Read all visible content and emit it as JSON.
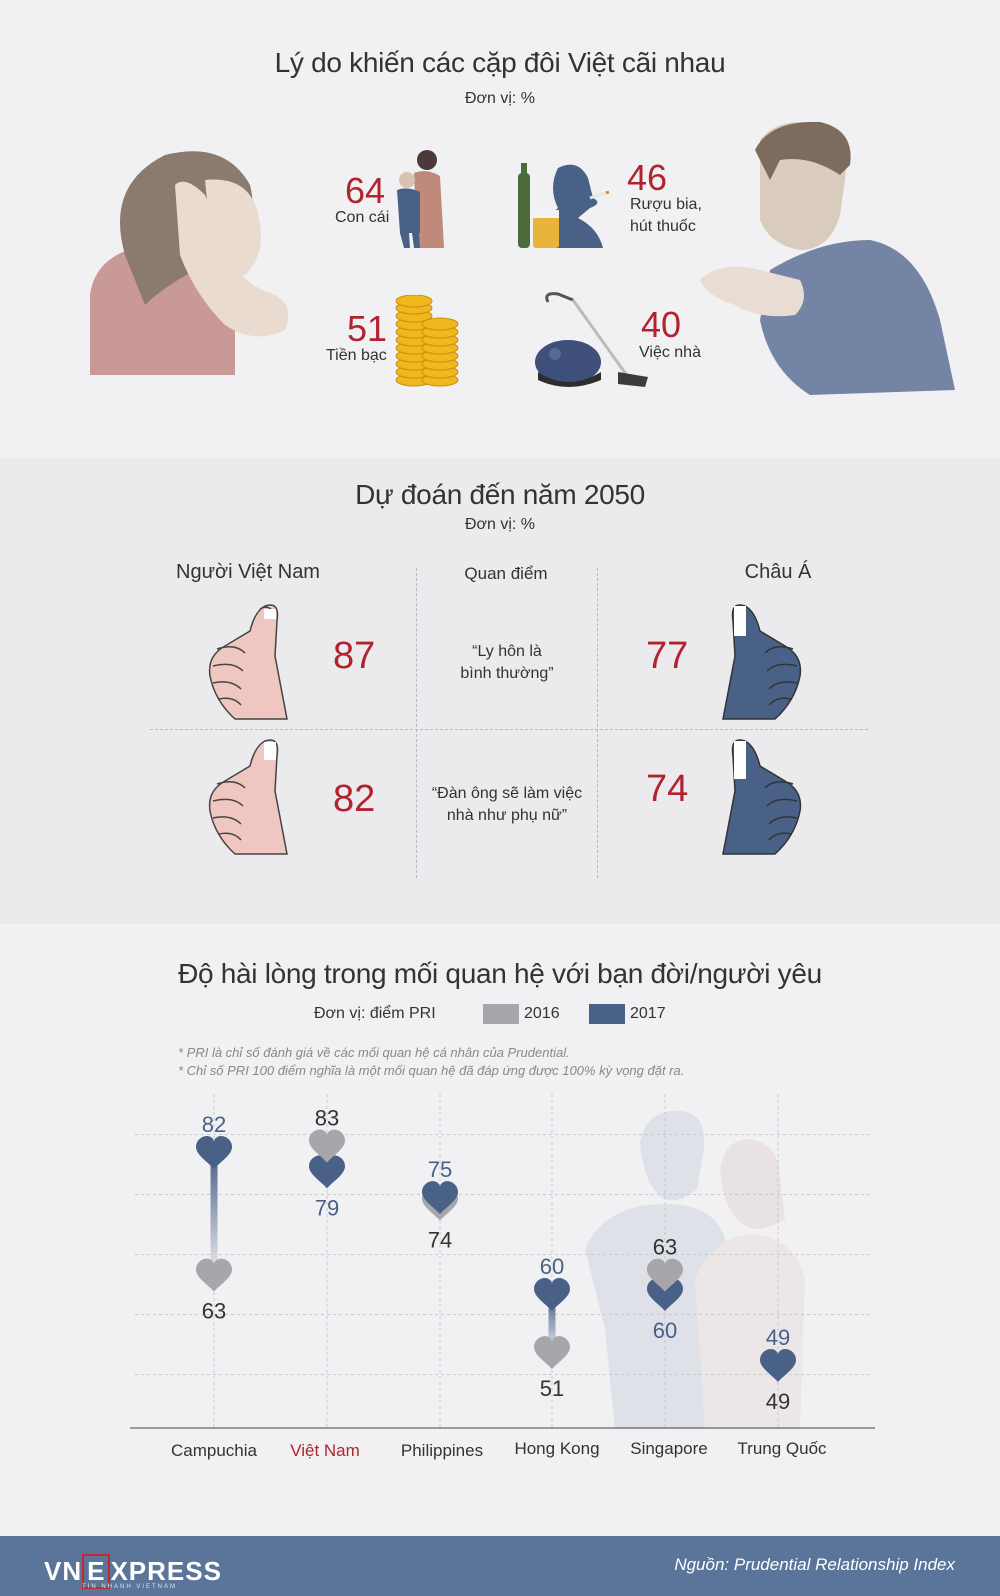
{
  "section1": {
    "title": "Lý do khiến các cặp đôi Việt cãi nhau",
    "unit": "Đơn vị: %",
    "items": [
      {
        "value": "64",
        "label": "Con cái",
        "icon": "mother-child-icon"
      },
      {
        "value": "46",
        "label": "Rượu bia, hút thuốc",
        "label_line1": "Rượu bia,",
        "label_line2": "hút thuốc",
        "icon": "drink-smoke-icon"
      },
      {
        "value": "51",
        "label": "Tiền bạc",
        "icon": "coins-icon"
      },
      {
        "value": "40",
        "label": "Việc nhà",
        "icon": "vacuum-cleaner-icon"
      }
    ]
  },
  "section2": {
    "title": "Dự đoán đến năm 2050",
    "unit": "Đơn vị: %",
    "col_left": "Người Việt Nam",
    "col_mid": "Quan điểm",
    "col_right": "Châu Á",
    "rows": [
      {
        "vn": "87",
        "asia": "77",
        "quote_line1": "“Ly hôn là",
        "quote_line2": "bình thường”"
      },
      {
        "vn": "82",
        "asia": "74",
        "quote_line1": "“Đàn ông sẽ làm việc",
        "quote_line2": "nhà như phụ nữ”"
      }
    ]
  },
  "section3": {
    "title": "Độ hài lòng trong mối quan hệ với bạn đời/người yêu",
    "unit": "Đơn vị: điểm PRI",
    "legend_2016": "2016",
    "legend_2017": "2017",
    "note1": "* PRI là chỉ số đánh giá về các mối quan hệ cá nhân của Prudential.",
    "note2": "* Chỉ số PRI 100 điểm nghĩa là một mối quan hệ đã đáp ứng được 100% kỳ vọng đặt ra."
  },
  "chart_data": {
    "type": "scatter",
    "title": "Độ hài lòng trong mối quan hệ với bạn đời/người yêu",
    "ylabel": "Đơn vị: điểm PRI",
    "categories": [
      "Campuchia",
      "Việt Nam",
      "Philippines",
      "Hong Kong",
      "Singapore",
      "Trung Quốc"
    ],
    "highlight": "Việt Nam",
    "series": [
      {
        "name": "2016",
        "color": "#a7a7ab",
        "values": [
          63,
          83,
          74,
          51,
          63,
          49
        ]
      },
      {
        "name": "2017",
        "color": "#4a6187",
        "values": [
          82,
          79,
          75,
          60,
          60,
          49
        ]
      }
    ],
    "ylim": [
      40,
      90
    ]
  },
  "footer": {
    "logo_vn": "VN",
    "logo_e": "E",
    "logo_xpress": "XPRESS",
    "logo_sub": "TIN NHANH VIETNAM",
    "source": "Nguồn: Prudential Relationship Index"
  },
  "colors": {
    "red": "#b22330",
    "blue": "#4a6187",
    "gray": "#a7a7ab",
    "footer": "#5a7599"
  }
}
